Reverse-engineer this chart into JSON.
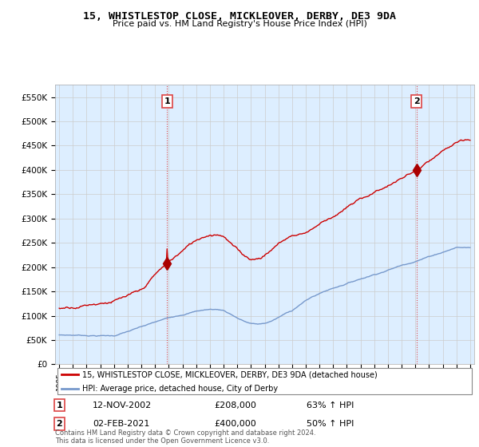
{
  "title": "15, WHISTLESTOP CLOSE, MICKLEOVER, DERBY, DE3 9DA",
  "subtitle": "Price paid vs. HM Land Registry's House Price Index (HPI)",
  "x_start_year": 1995,
  "x_end_year": 2025,
  "y_min": 0,
  "y_max": 575000,
  "y_ticks": [
    0,
    50000,
    100000,
    150000,
    200000,
    250000,
    300000,
    350000,
    400000,
    450000,
    500000,
    550000
  ],
  "y_tick_labels": [
    "£0",
    "£50K",
    "£100K",
    "£150K",
    "£200K",
    "£250K",
    "£300K",
    "£350K",
    "£400K",
    "£450K",
    "£500K",
    "£550K"
  ],
  "red_line_color": "#cc0000",
  "blue_line_color": "#7799cc",
  "marker_color": "#aa0000",
  "vline_color": "#dd4444",
  "grid_color": "#cccccc",
  "plot_bg_color": "#ddeeff",
  "background_color": "#ffffff",
  "legend_label_red": "15, WHISTLESTOP CLOSE, MICKLEOVER, DERBY, DE3 9DA (detached house)",
  "legend_label_blue": "HPI: Average price, detached house, City of Derby",
  "annotation1_date": "12-NOV-2002",
  "annotation1_price": "£208,000",
  "annotation1_change": "63% ↑ HPI",
  "annotation1_year": 2002.87,
  "annotation1_value": 208000,
  "annotation2_date": "02-FEB-2021",
  "annotation2_price": "£400,000",
  "annotation2_change": "50% ↑ HPI",
  "annotation2_year": 2021.09,
  "annotation2_value": 400000,
  "footer": "Contains HM Land Registry data © Crown copyright and database right 2024.\nThis data is licensed under the Open Government Licence v3.0."
}
